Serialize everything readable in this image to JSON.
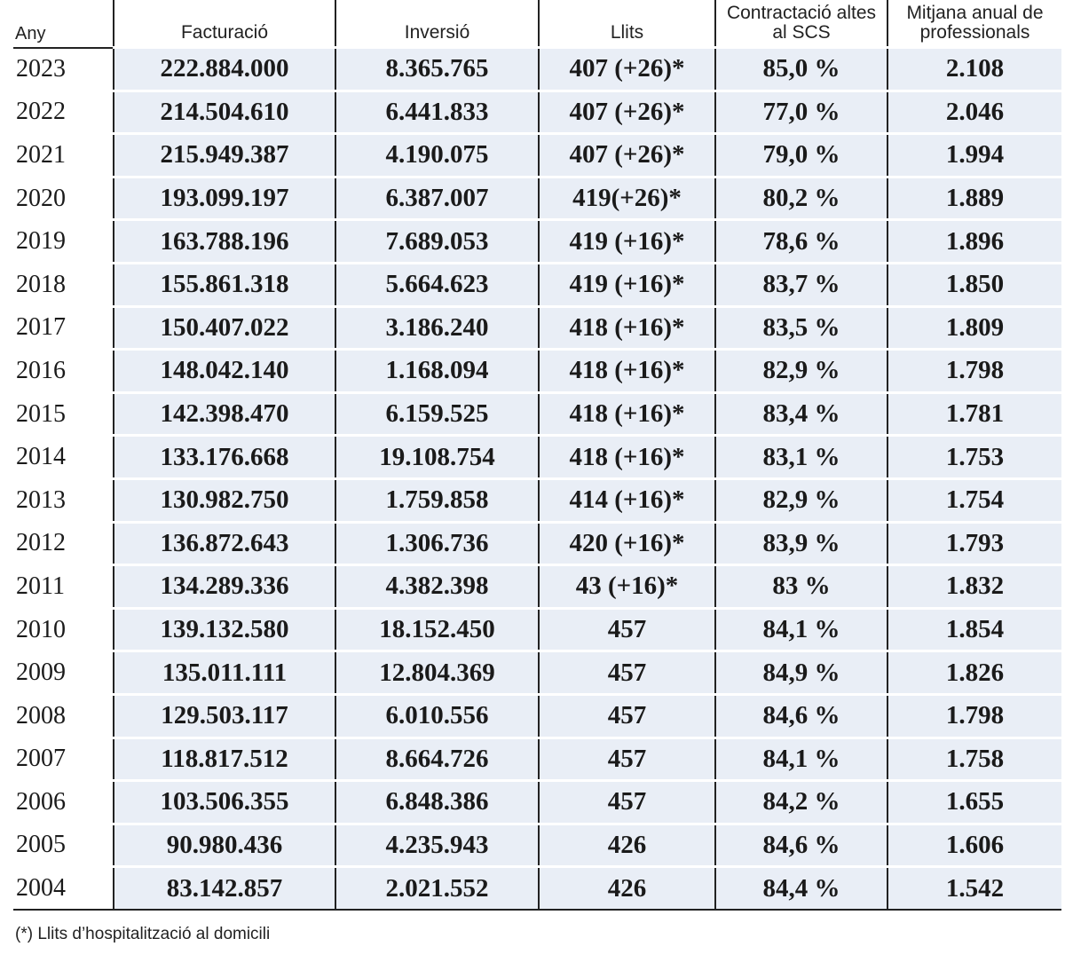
{
  "table": {
    "header": [
      "Any",
      "Facturació",
      "Inversió",
      "Llits",
      "Contractació altes al SCS",
      "Mitjana anual de professionals"
    ],
    "rows": [
      [
        "2023",
        "222.884.000",
        "8.365.765",
        "407 (+26)*",
        "85,0 %",
        "2.108"
      ],
      [
        "2022",
        "214.504.610",
        "6.441.833",
        "407 (+26)*",
        "77,0 %",
        "2.046"
      ],
      [
        "2021",
        "215.949.387",
        "4.190.075",
        "407 (+26)*",
        "79,0 %",
        "1.994"
      ],
      [
        "2020",
        "193.099.197",
        "6.387.007",
        "419(+26)*",
        "80,2 %",
        "1.889"
      ],
      [
        "2019",
        "163.788.196",
        "7.689.053",
        "419 (+16)*",
        "78,6 %",
        "1.896"
      ],
      [
        "2018",
        "155.861.318",
        "5.664.623",
        "419 (+16)*",
        "83,7 %",
        "1.850"
      ],
      [
        "2017",
        "150.407.022",
        "3.186.240",
        "418 (+16)*",
        "83,5 %",
        "1.809"
      ],
      [
        "2016",
        "148.042.140",
        "1.168.094",
        "418 (+16)*",
        "82,9 %",
        "1.798"
      ],
      [
        "2015",
        "142.398.470",
        "6.159.525",
        "418 (+16)*",
        "83,4 %",
        "1.781"
      ],
      [
        "2014",
        "133.176.668",
        "19.108.754",
        "418 (+16)*",
        "83,1 %",
        "1.753"
      ],
      [
        "2013",
        "130.982.750",
        "1.759.858",
        "414 (+16)*",
        "82,9 %",
        "1.754"
      ],
      [
        "2012",
        "136.872.643",
        "1.306.736",
        "420 (+16)*",
        "83,9 %",
        "1.793"
      ],
      [
        "2011",
        "134.289.336",
        "4.382.398",
        "43 (+16)*",
        "83 %",
        "1.832"
      ],
      [
        "2010",
        "139.132.580",
        "18.152.450",
        "457",
        "84,1 %",
        "1.854"
      ],
      [
        "2009",
        "135.011.111",
        "12.804.369",
        "457",
        "84,9 %",
        "1.826"
      ],
      [
        "2008",
        "129.503.117",
        "6.010.556",
        "457",
        "84,6 %",
        "1.798"
      ],
      [
        "2007",
        "118.817.512",
        "8.664.726",
        "457",
        "84,1 %",
        "1.758"
      ],
      [
        "2006",
        "103.506.355",
        "6.848.386",
        "457",
        "84,2 %",
        "1.655"
      ],
      [
        "2005",
        "90.980.436",
        "4.235.943",
        "426",
        "84,6 %",
        "1.606"
      ],
      [
        "2004",
        "83.142.857",
        "2.021.552",
        "426",
        "84,4 %",
        "1.542"
      ]
    ],
    "footnote": "(*) Llits d’hospitalització al domicili"
  }
}
